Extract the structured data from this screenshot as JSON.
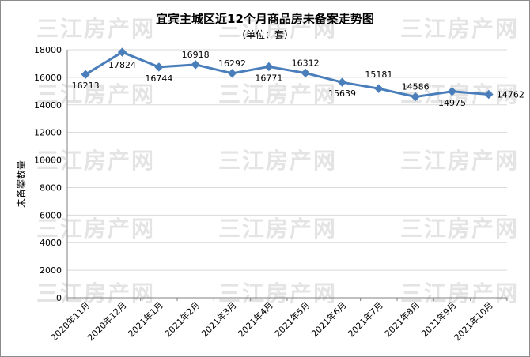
{
  "watermark": "三江房产网",
  "chart_data": {
    "type": "line",
    "title": "宜宾主城区近12个月商品房未备案走势图",
    "subtitle": "（单位：套）",
    "xlabel": "",
    "ylabel": "未备案数量",
    "categories": [
      "2020年11月",
      "2020年12月",
      "2021年1月",
      "2021年2月",
      "2021年3月",
      "2021年4月",
      "2021年5月",
      "2021年6月",
      "2021年7月",
      "2021年8月",
      "2021年9月",
      "2021年10月"
    ],
    "series": [
      {
        "values": [
          16213,
          17824,
          16744,
          16918,
          16292,
          16771,
          16312,
          15639,
          15181,
          14586,
          14975,
          14762
        ],
        "color": "#4a7ebb"
      }
    ],
    "ylim": [
      0,
      18000
    ],
    "yticks": [
      0,
      2000,
      4000,
      6000,
      8000,
      10000,
      12000,
      14000,
      16000,
      18000
    ],
    "grid": true,
    "legend": "none"
  }
}
